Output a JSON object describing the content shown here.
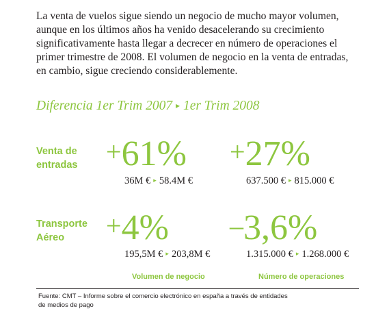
{
  "intro": {
    "lines": [
      "La venta de vuelos sigue siendo un negocio de mucho mayor volumen,",
      "aunque en los últimos años ha venido desacelerando su crecimiento",
      "significativamente hasta llegar a decrecer en número de operaciones el",
      "primer trimestre de 2008. El volumen de negocio en la venta de entradas,",
      "en cambio, sigue creciendo considerablemente."
    ]
  },
  "heading": {
    "from": "Diferencia 1er Trim 2007",
    "arrow": "▸",
    "to": "1er Trim 2008"
  },
  "rows": [
    {
      "label_lines": [
        "Venta de",
        "entradas"
      ],
      "volume": {
        "sign": "+",
        "value": "61%",
        "from": "36M €",
        "to": "58.4M €"
      },
      "operations": {
        "sign": "+",
        "value": "27%",
        "from": "637.500 €",
        "to": "815.000 €"
      }
    },
    {
      "label_lines": [
        "Transporte",
        "Aéreo"
      ],
      "volume": {
        "sign": "+",
        "value": "4%",
        "from": "195,5M €",
        "to": "203,8M €"
      },
      "operations": {
        "sign": "–",
        "value": "3,6%",
        "from": "1.315.000 €",
        "to": "1.268.000 €"
      }
    }
  ],
  "arrow_glyph": "▸",
  "columns": {
    "volume_label": "Volumen de negocio",
    "operations_label": "Número de operaciones"
  },
  "source": {
    "lines": [
      "Fuente: CMT – Informe sobre el comercio electrónico en españa a través de entidades",
      "de medios de pago"
    ]
  },
  "colors": {
    "accent": "#8dc63f",
    "text": "#231f20"
  }
}
